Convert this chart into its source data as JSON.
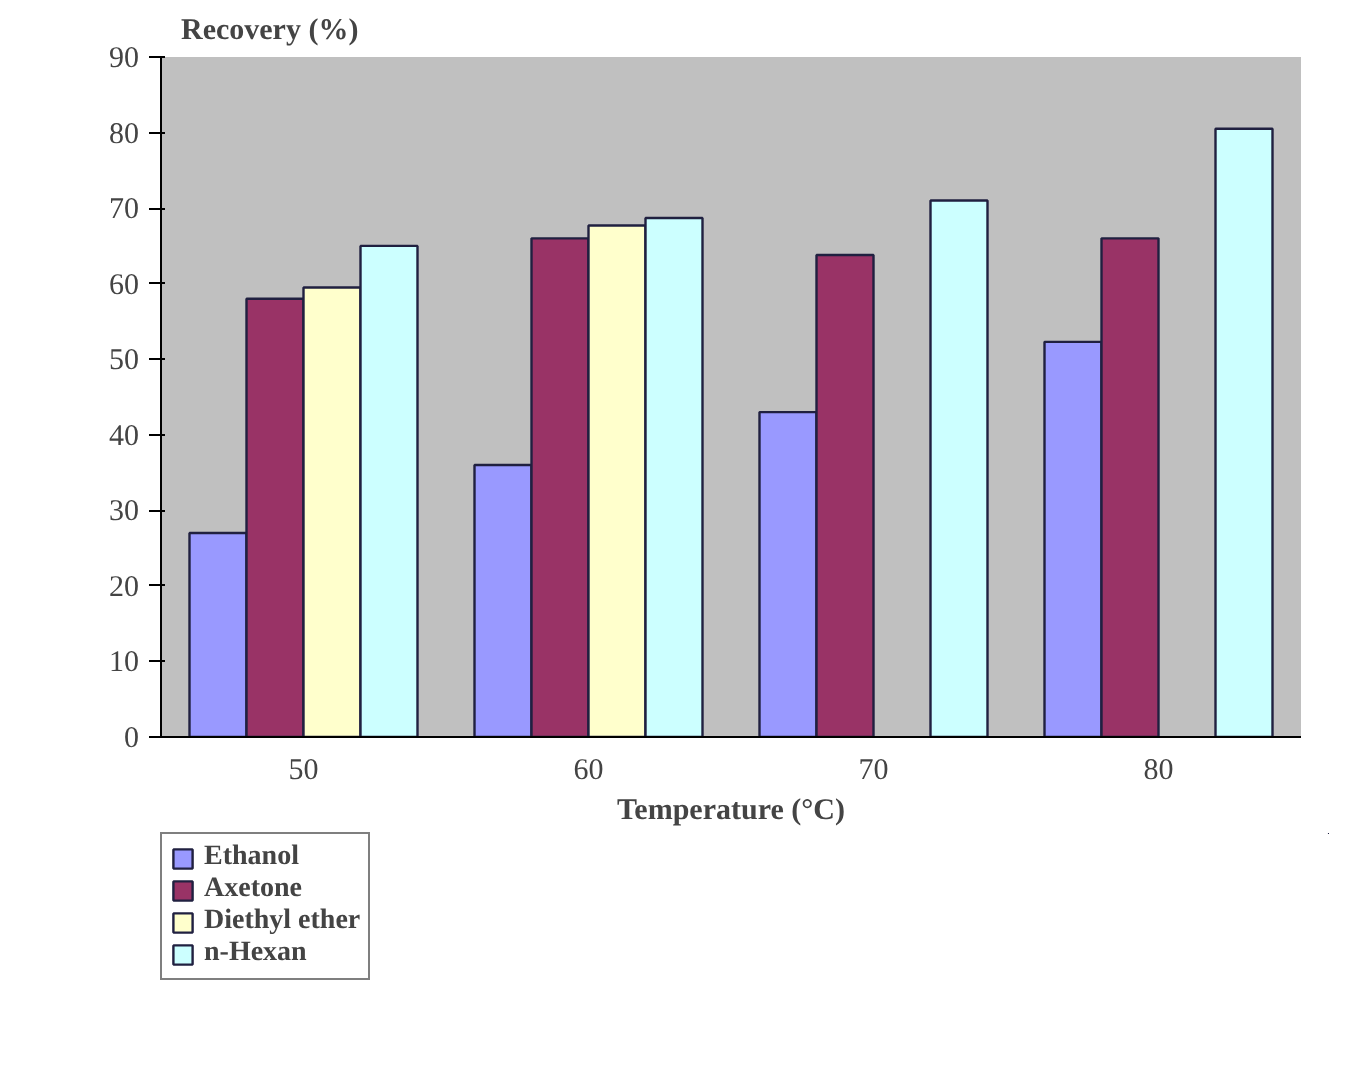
{
  "chart_data": {
    "type": "bar",
    "ylabel": "Recovery (%)",
    "xlabel": "Temperature (°C)",
    "categories": [
      "50",
      "60",
      "70",
      "80"
    ],
    "series": [
      {
        "name": "Ethanol",
        "color": "#9999ff",
        "values": [
          27,
          36,
          43,
          52.3
        ]
      },
      {
        "name": "Axetone",
        "color": "#993366",
        "values": [
          58,
          66,
          63.8,
          66
        ]
      },
      {
        "name": "Diethyl ether",
        "color": "#ffffcc",
        "values": [
          59.5,
          67.7,
          null,
          null
        ]
      },
      {
        "name": "n-Hexan",
        "color": "#ccffff",
        "values": [
          65,
          68.7,
          71,
          80.5
        ]
      }
    ],
    "ylim": [
      0,
      90
    ],
    "yticks": [
      0,
      10,
      20,
      30,
      40,
      50,
      60,
      70,
      80,
      90
    ],
    "grid": false,
    "legend": "bottom left"
  }
}
